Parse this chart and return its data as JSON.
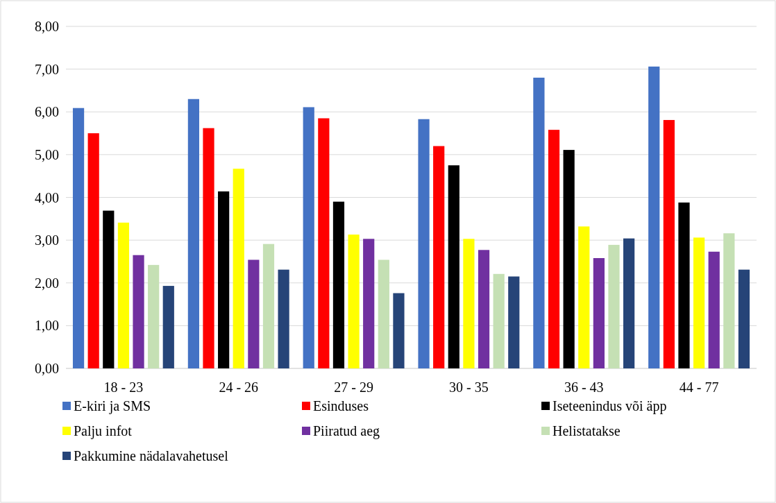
{
  "chart_data": {
    "type": "bar",
    "categories": [
      "18 - 23",
      "24 - 26",
      "27 - 29",
      "30 - 35",
      "36 - 43",
      "44 - 77"
    ],
    "series": [
      {
        "name": "E-kiri ja SMS",
        "color": "#4472c4",
        "values": [
          6.09,
          6.3,
          6.11,
          5.83,
          6.8,
          7.06
        ]
      },
      {
        "name": "Esinduses",
        "color": "#ff0000",
        "values": [
          5.5,
          5.62,
          5.85,
          5.2,
          5.58,
          5.81
        ]
      },
      {
        "name": "Iseteenindus või äpp",
        "color": "#000000",
        "values": [
          3.69,
          4.14,
          3.9,
          4.75,
          5.11,
          3.88
        ]
      },
      {
        "name": "Palju infot",
        "color": "#ffff00",
        "values": [
          3.41,
          4.67,
          3.13,
          3.03,
          3.32,
          3.06
        ]
      },
      {
        "name": "Piiratud aeg",
        "color": "#7030a0",
        "values": [
          2.65,
          2.54,
          3.03,
          2.77,
          2.58,
          2.73
        ]
      },
      {
        "name": "Helistatakse",
        "color": "#c5e0b4",
        "values": [
          2.42,
          2.91,
          2.54,
          2.21,
          2.89,
          3.16
        ]
      },
      {
        "name": "Pakkumine nädalavahetusel",
        "color": "#264478",
        "values": [
          1.93,
          2.31,
          1.76,
          2.15,
          3.04,
          2.31
        ]
      }
    ],
    "ylim": [
      0,
      8
    ],
    "yticks": [
      {
        "value": 0,
        "label": "0,00"
      },
      {
        "value": 1,
        "label": "1,00"
      },
      {
        "value": 2,
        "label": "2,00"
      },
      {
        "value": 3,
        "label": "3,00"
      },
      {
        "value": 4,
        "label": "4,00"
      },
      {
        "value": 5,
        "label": "5,00"
      },
      {
        "value": 6,
        "label": "6,00"
      },
      {
        "value": 7,
        "label": "7,00"
      },
      {
        "value": 8,
        "label": "8,00"
      }
    ],
    "grid": "y",
    "legend": "bottom"
  }
}
